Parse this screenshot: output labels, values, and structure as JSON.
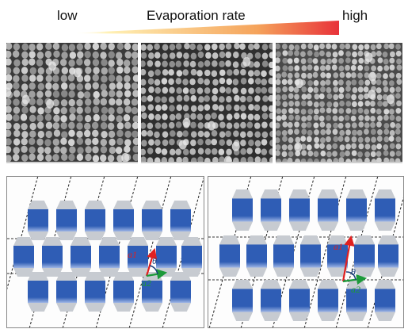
{
  "header": {
    "low_label": "low",
    "title": "Evaporation rate",
    "high_label": "high",
    "gradient_start": "#fff6c8",
    "gradient_end": "#e8323a"
  },
  "sem_images": [
    {
      "name": "sem-low-rate",
      "tone": "#5b5b5b"
    },
    {
      "name": "sem-mid-rate",
      "tone": "#4a4a4a"
    },
    {
      "name": "sem-high-rate",
      "tone": "#6a6a6a"
    }
  ],
  "schematics": [
    {
      "name": "lattice-left",
      "a1": "a1",
      "a2": "a2",
      "theta": "θ"
    },
    {
      "name": "lattice-right",
      "a1": "a1",
      "a2": "a2",
      "theta": "θ"
    }
  ],
  "colors": {
    "rod_blue": "#2f5db5",
    "rod_light": "#9fb6e6",
    "cap_gray": "#c7cbd1",
    "vector_a1": "#e02020",
    "vector_a2": "#1c9a3a",
    "theta_color": "#1b3f7a"
  }
}
